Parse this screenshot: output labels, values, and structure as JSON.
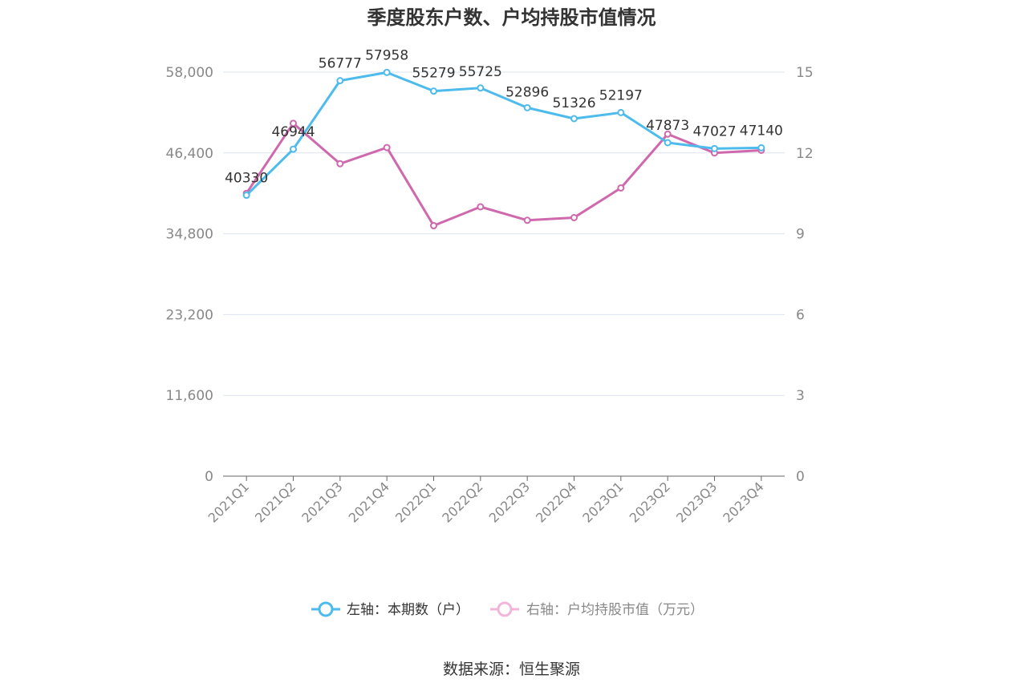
{
  "title": "季度股东户数、户均持股市值情况",
  "source": "数据来源：恒生聚源",
  "chart_data": {
    "type": "line",
    "title": "季度股东户数、户均持股市值情况",
    "categories": [
      "2021Q1",
      "2021Q2",
      "2021Q3",
      "2021Q4",
      "2022Q1",
      "2022Q2",
      "2022Q3",
      "2022Q4",
      "2023Q1",
      "2023Q2",
      "2023Q3",
      "2023Q4"
    ],
    "y_left": {
      "ylim": [
        0,
        58000
      ],
      "ticks": [
        "0",
        "11,600",
        "23,200",
        "34,800",
        "46,400",
        "58,000"
      ],
      "tick_values": [
        0,
        11600,
        23200,
        34800,
        46400,
        58000
      ]
    },
    "y_right": {
      "ylim": [
        0,
        15
      ],
      "ticks": [
        "0",
        "3",
        "6",
        "9",
        "12",
        "15"
      ],
      "tick_values": [
        0,
        3,
        6,
        9,
        12,
        15
      ]
    },
    "series": [
      {
        "name": "左轴：本期数（户）",
        "axis": "left",
        "color": "#4dbbec",
        "values": [
          40330,
          46944,
          56777,
          57958,
          55279,
          55725,
          52896,
          51326,
          52197,
          47873,
          47027,
          47140
        ],
        "labels": [
          "40330",
          "46944",
          "56777",
          "57958",
          "55279",
          "55725",
          "52896",
          "51326",
          "52197",
          "47873",
          "47027",
          "47140"
        ]
      },
      {
        "name": "右轴：户均持股市值（万元）",
        "axis": "right",
        "color": "#cf68ac",
        "values": [
          10.5,
          13.1,
          11.6,
          12.2,
          9.3,
          10.0,
          9.5,
          9.6,
          10.7,
          12.7,
          12.0,
          12.1
        ]
      }
    ],
    "grid": true,
    "legend_position": "bottom"
  }
}
